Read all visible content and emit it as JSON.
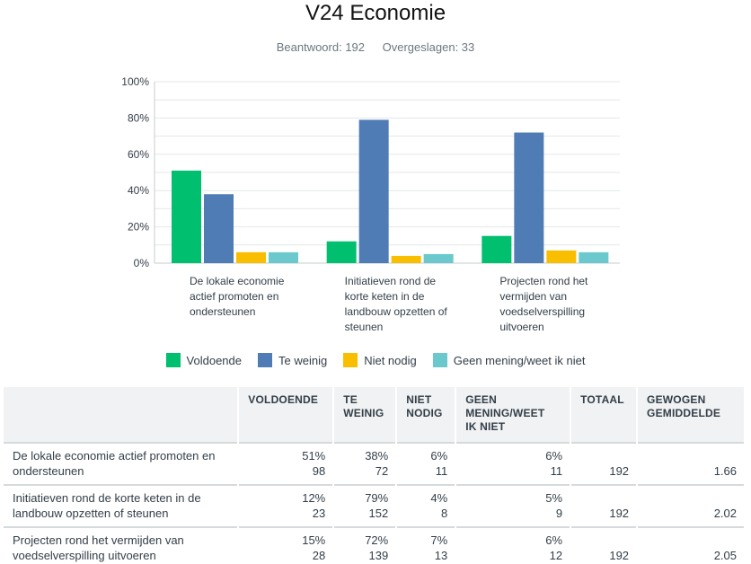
{
  "title": "V24 Economie",
  "meta": {
    "answered": "Beantwoord: 192",
    "skipped": "Overgeslagen: 33"
  },
  "colors": {
    "Voldoende": "#00bf6f",
    "Te weinig": "#507cb6",
    "Niet nodig": "#f9be00",
    "Geen mening/weet ik niet": "#6bc8cd"
  },
  "chart_data": {
    "type": "bar",
    "title": "V24 Economie",
    "categories": [
      [
        "De lokale economie",
        "actief promoten en",
        "ondersteunen"
      ],
      [
        "Initiatieven rond de",
        "korte keten in de",
        "landbouw opzetten of",
        "steunen"
      ],
      [
        "Projecten rond het",
        "vermijden van",
        "voedselverspilling",
        "uitvoeren"
      ]
    ],
    "series": [
      {
        "name": "Voldoende",
        "values": [
          51,
          12,
          15
        ]
      },
      {
        "name": "Te weinig",
        "values": [
          38,
          79,
          72
        ]
      },
      {
        "name": "Niet nodig",
        "values": [
          6,
          4,
          7
        ]
      },
      {
        "name": "Geen mening/weet ik niet",
        "values": [
          6,
          5,
          6
        ]
      }
    ],
    "yticks": [
      "0%",
      "20%",
      "40%",
      "60%",
      "80%",
      "100%"
    ],
    "ylim": [
      0,
      100
    ],
    "grid": true,
    "legend": "bottom"
  },
  "table": {
    "headers": [
      "",
      [
        "VOLDOENDE"
      ],
      [
        "TE",
        "WEINIG"
      ],
      [
        "NIET",
        "NODIG"
      ],
      [
        "GEEN",
        "MENING/WEET",
        "IK NIET"
      ],
      [
        "TOTAAL"
      ],
      [
        "GEWOGEN",
        "GEMIDDELDE"
      ]
    ],
    "rows": [
      {
        "label": "De lokale economie actief promoten en ondersteunen",
        "cells": [
          [
            "51%",
            "98"
          ],
          [
            "38%",
            "72"
          ],
          [
            "6%",
            "11"
          ],
          [
            "6%",
            "11"
          ]
        ],
        "total": "192",
        "avg": "1.66"
      },
      {
        "label": "Initiatieven rond de korte keten in de landbouw opzetten of steunen",
        "cells": [
          [
            "12%",
            "23"
          ],
          [
            "79%",
            "152"
          ],
          [
            "4%",
            "8"
          ],
          [
            "5%",
            "9"
          ]
        ],
        "total": "192",
        "avg": "2.02"
      },
      {
        "label": "Projecten rond het vermijden van voedselverspilling uitvoeren",
        "cells": [
          [
            "15%",
            "28"
          ],
          [
            "72%",
            "139"
          ],
          [
            "7%",
            "13"
          ],
          [
            "6%",
            "12"
          ]
        ],
        "total": "192",
        "avg": "2.05"
      }
    ]
  }
}
